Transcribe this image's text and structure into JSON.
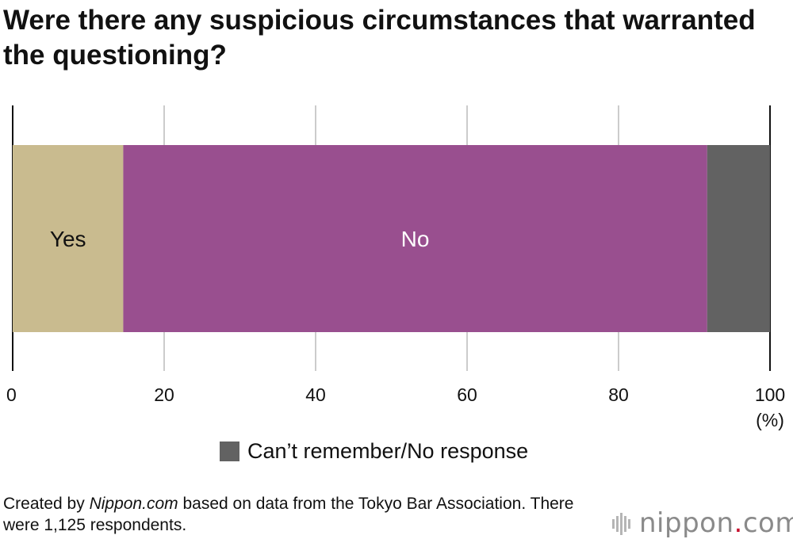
{
  "title": "Were there any suspicious circumstances that warranted the questioning?",
  "chart_data": {
    "type": "bar",
    "orientation": "horizontal-stacked",
    "categories": [
      ""
    ],
    "series": [
      {
        "name": "Yes",
        "values": [
          14.6
        ],
        "color": "#c9bb8f",
        "label": "Yes",
        "label_color": "#111111"
      },
      {
        "name": "No",
        "values": [
          77.1
        ],
        "color": "#994f8f",
        "label": "No",
        "label_color": "#ffffff"
      },
      {
        "name": "Can’t remember/No response",
        "values": [
          8.3
        ],
        "color": "#626262",
        "label": "",
        "label_color": "#ffffff"
      }
    ],
    "xlim": [
      0,
      100
    ],
    "xticks": [
      0,
      20,
      40,
      60,
      80,
      100
    ],
    "xunit": "(%)",
    "grid": true,
    "legend": {
      "placement": "bottom",
      "items": [
        "Can’t remember/No response"
      ]
    }
  },
  "footer": {
    "prefix": "Created by ",
    "source_name": "Nippon.com",
    "suffix": " based on data from the Tokyo Bar Association. There were 1,125 respondents."
  },
  "logo": {
    "text_main": "nippon",
    "text_dot": ".",
    "text_tail": "com",
    "dot_color": "#c8102e"
  }
}
